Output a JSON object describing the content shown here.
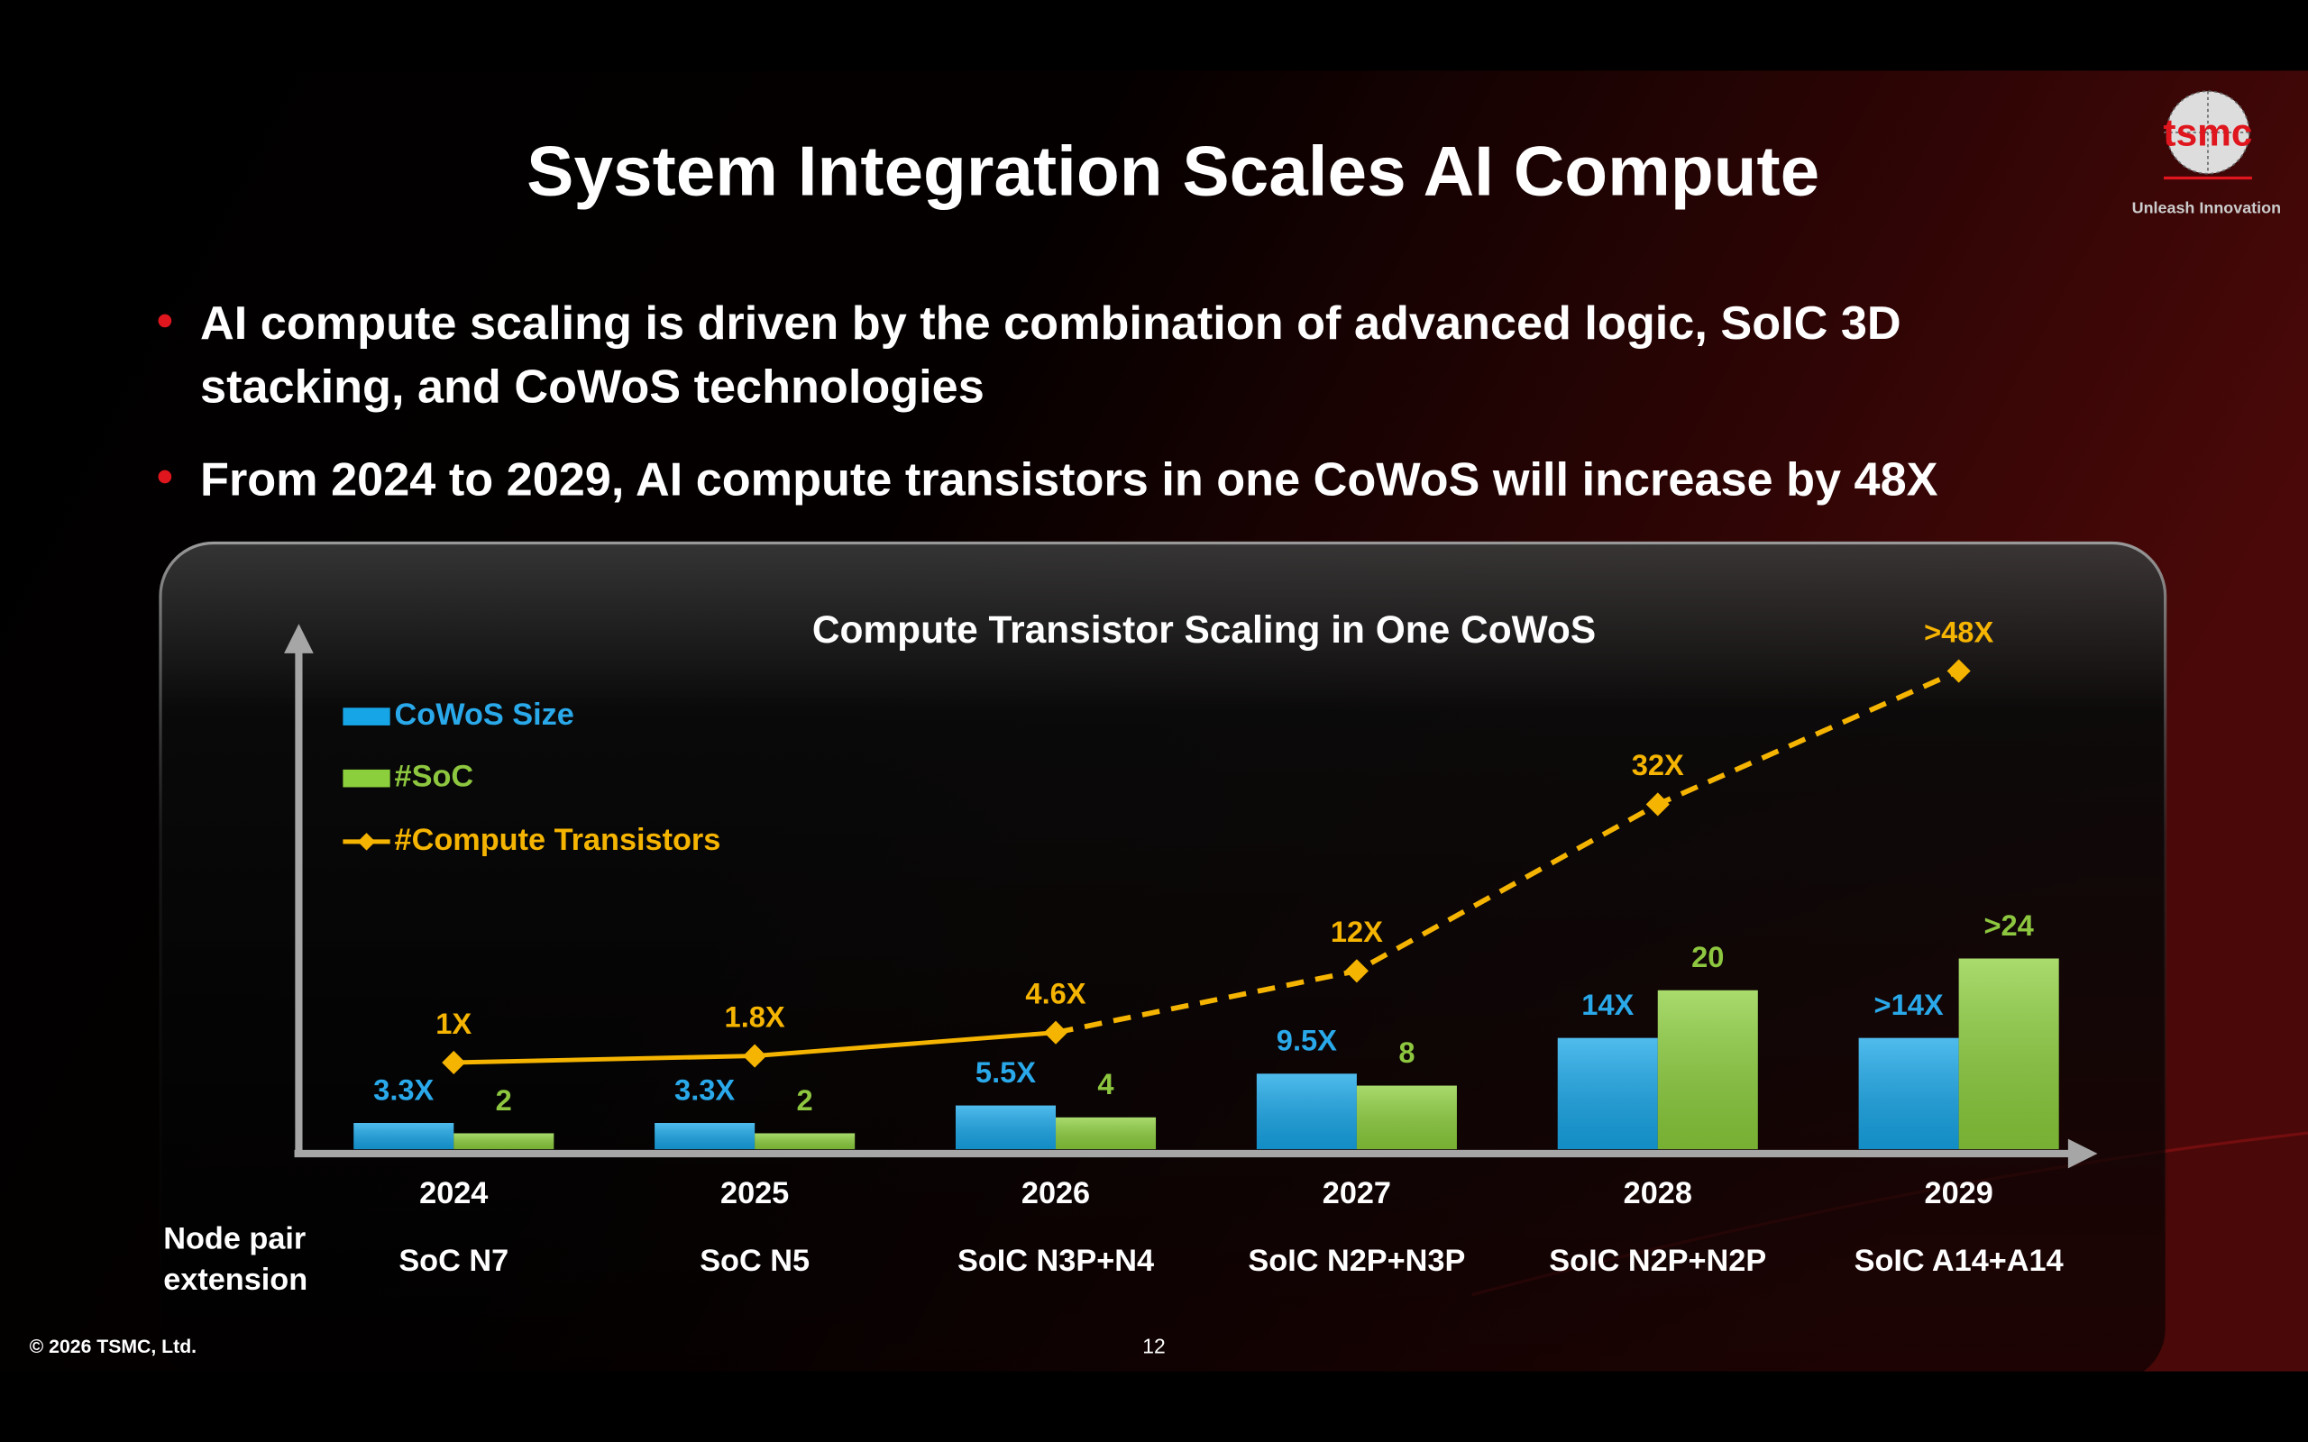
{
  "slide": {
    "title": "System Integration Scales AI Compute",
    "logo_text": "tsmc",
    "logo_tagline": "Unleash Innovation",
    "bullets": [
      [
        "AI compute scaling is driven by the combination of advanced logic, SoIC 3D",
        "stacking, and CoWoS technologies"
      ],
      [
        "From 2024 to 2029, AI compute transistors in one CoWoS will increase by 48X"
      ]
    ],
    "footer": "© 2026 TSMC, Ltd.",
    "page_number": "12"
  },
  "chart_data": {
    "type": "bar",
    "title": "Compute Transistor Scaling in One CoWoS",
    "categories": [
      "2024",
      "2025",
      "2026",
      "2027",
      "2028",
      "2029"
    ],
    "row_label": [
      "Node pair",
      "extension"
    ],
    "node_labels": [
      "SoC N7",
      "SoC N5",
      "SoIC N3P+N4",
      "SoIC N2P+N3P",
      "SoIC N2P+N2P",
      "SoIC A14+A14"
    ],
    "ylim": [
      0,
      65
    ],
    "y2lim": [
      -9.4,
      52.6
    ],
    "series": [
      {
        "name": "CoWoS Size",
        "type": "bar",
        "color": "#16a6e8",
        "label_color": "#2aa9ea",
        "values": [
          3.3,
          3.3,
          5.5,
          9.5,
          14,
          14
        ],
        "value_labels": [
          "3.3X",
          "3.3X",
          "5.5X",
          "9.5X",
          "14X",
          ">14X"
        ]
      },
      {
        "name": "#SoC",
        "type": "bar",
        "color": "#8ccf3c",
        "label_color": "#8dc63f",
        "values": [
          2,
          2,
          4,
          8,
          20,
          24
        ],
        "value_labels": [
          "2",
          "2",
          "4",
          "8",
          "20",
          ">24"
        ]
      },
      {
        "name": "#Compute Transistors",
        "type": "line",
        "axis": "y2",
        "color": "#f5b400",
        "dashed_after": "2026",
        "values": [
          1,
          1.8,
          4.6,
          12,
          32,
          48
        ],
        "value_labels": [
          "1X",
          "1.8X",
          "4.6X",
          "12X",
          "32X",
          ">48X"
        ]
      }
    ]
  }
}
